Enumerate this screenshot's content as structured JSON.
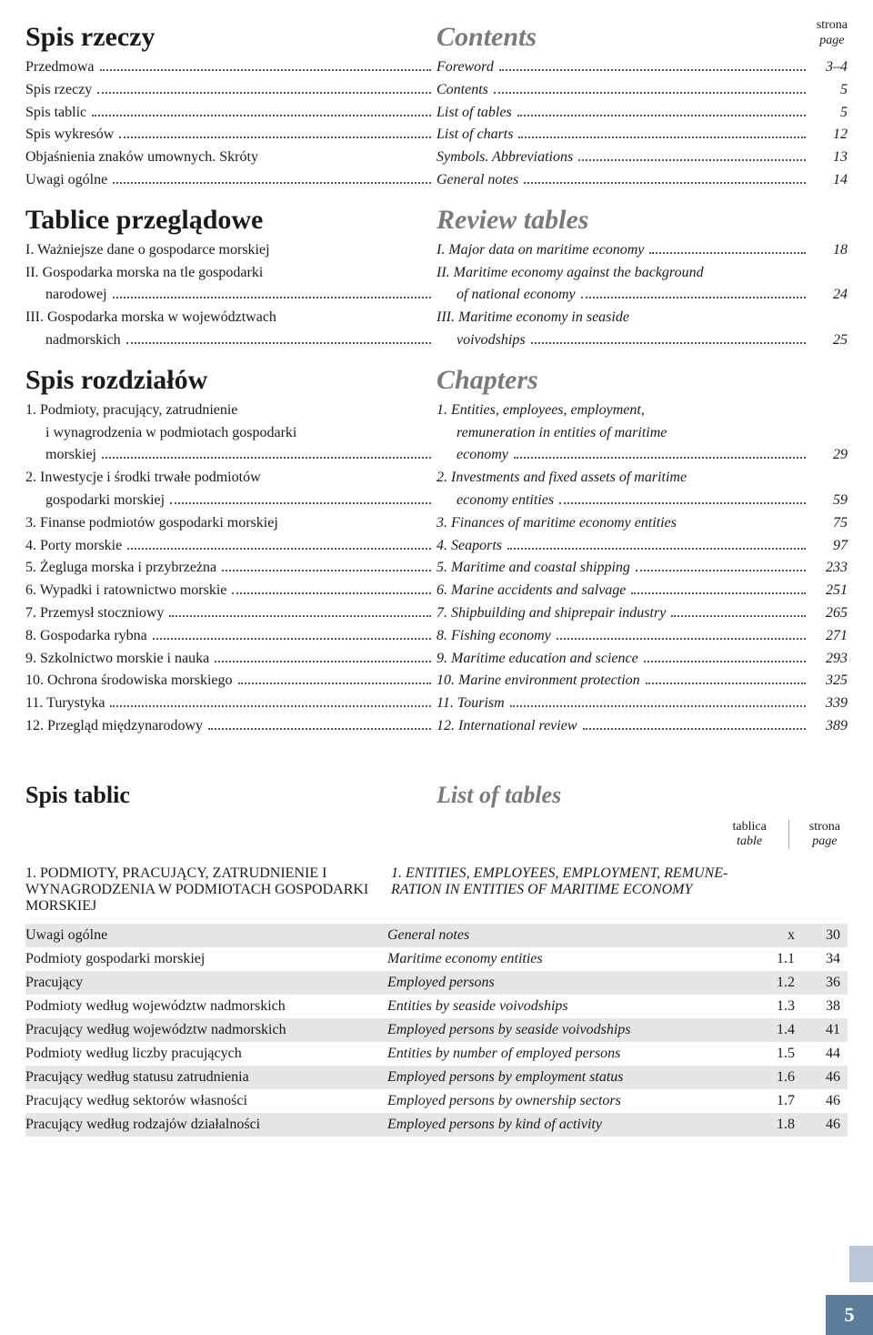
{
  "header": {
    "strona": "strona",
    "page": "page"
  },
  "section1": {
    "leftTitle": "Spis rzeczy",
    "rightTitle": "Contents",
    "rows": [
      {
        "pl": "Przedmowa",
        "en": "Foreword",
        "page": "3–4"
      },
      {
        "pl": "Spis rzeczy",
        "en": "Contents",
        "page": "5"
      },
      {
        "pl": "Spis tablic",
        "en": "List of tables",
        "page": "5"
      },
      {
        "pl": "Spis wykresów",
        "en": "List of charts",
        "page": "12"
      },
      {
        "pl": "Objaśnienia znaków umownych. Skróty",
        "en": "Symbols. Abbreviations",
        "page": "13",
        "noDotsLeft": true
      },
      {
        "pl": "Uwagi ogólne",
        "en": "General notes",
        "page": "14"
      }
    ]
  },
  "section2": {
    "leftTitle": "Tablice przeglądowe",
    "rightTitle": "Review tables",
    "rows": [
      {
        "pl": "I. Ważniejsze dane o gospodarce morskiej",
        "en": "I. Major data on maritime economy",
        "page": "18",
        "noDotsLeft": true
      },
      {
        "pl": "II. Gospodarka morska na tle gospodarki",
        "plCont": "narodowej",
        "en": "II. Maritime economy against the background",
        "enCont": "of national economy",
        "page": "24"
      },
      {
        "pl": "III. Gospodarka morska w województwach",
        "plCont": "nadmorskich",
        "en": "III. Maritime economy in seaside",
        "enCont": "voivodships",
        "page": "25"
      }
    ]
  },
  "section3": {
    "leftTitle": "Spis rozdziałów",
    "rightTitle": "Chapters",
    "rows": [
      {
        "pl": "1. Podmioty, pracujący, zatrudnienie",
        "plCont": "i wynagrodzenia w podmiotach gospodarki",
        "plCont2": "morskiej",
        "en": "1. Entities, employees, employment,",
        "enCont": "remuneration in entities of maritime",
        "enCont2": "economy",
        "page": "29"
      },
      {
        "pl": "2. Inwestycje i środki trwałe podmiotów",
        "plCont": "gospodarki morskiej",
        "en": "2. Investments and fixed assets of maritime",
        "enCont": "economy entities",
        "page": "59"
      },
      {
        "pl": "3. Finanse podmiotów gospodarki morskiej",
        "en": "3. Finances of maritime economy entities",
        "page": "75",
        "noDotsLeft": true,
        "noDots": true
      },
      {
        "pl": "4. Porty morskie",
        "en": "4. Seaports",
        "page": "97"
      },
      {
        "pl": "5. Żegluga morska i przybrzeżna",
        "en": "5. Maritime and coastal shipping",
        "page": "233"
      },
      {
        "pl": "6. Wypadki i ratownictwo morskie",
        "en": "6. Marine accidents and salvage",
        "page": "251"
      },
      {
        "pl": "7. Przemysł stoczniowy",
        "en": "7. Shipbuilding and shiprepair industry",
        "page": "265"
      },
      {
        "pl": "8. Gospodarka rybna",
        "en": "8. Fishing economy",
        "page": "271"
      },
      {
        "pl": "9. Szkolnictwo morskie i nauka",
        "en": "9. Maritime education and science",
        "page": "293"
      },
      {
        "pl": "10. Ochrona środowiska morskiego",
        "en": "10. Marine environment protection",
        "page": "325"
      },
      {
        "pl": "11. Turystyka",
        "en": "11. Tourism",
        "page": "339"
      },
      {
        "pl": "12. Przegląd międzynarodowy",
        "en": "12. International review",
        "page": "389"
      }
    ]
  },
  "listTables": {
    "leftTitle": "Spis tablic",
    "rightTitle": "List of tables",
    "col1": "tablica",
    "col1sub": "table",
    "col2": "strona",
    "col2sub": "page",
    "sectionHead": {
      "pl": "1. PODMIOTY, PRACUJĄCY, ZATRUDNIENIE I WYNAGRO­DZENIA W PODMIOTACH GOSPODARKI MORSKIEJ",
      "en": "1. ENTITIES, EMPLOYEES, EMPLOYMENT, REMUNE­RATION IN ENTITIES OF MARITIME ECONOMY"
    },
    "rows": [
      {
        "pl": "Uwagi ogólne",
        "en": "General notes",
        "t": "x",
        "p": "30",
        "shaded": true
      },
      {
        "pl": "Podmioty gospodarki morskiej",
        "en": "Maritime economy entities",
        "t": "1.1",
        "p": "34"
      },
      {
        "pl": "Pracujący",
        "en": "Employed persons",
        "t": "1.2",
        "p": "36",
        "shaded": true
      },
      {
        "pl": "Podmioty według województw nadmor­skich",
        "en": "Entities by seaside voivodships",
        "t": "1.3",
        "p": "38"
      },
      {
        "pl": "Pracujący według województw nadmor­skich",
        "en": "Employed persons by seaside voivodships",
        "t": "1.4",
        "p": "41",
        "shaded": true
      },
      {
        "pl": "Podmioty według liczby pracujących",
        "en": "Entities by number of employed persons",
        "t": "1.5",
        "p": "44"
      },
      {
        "pl": "Pracujący według statusu zatrudnienia",
        "en": "Employed persons by employment status",
        "t": "1.6",
        "p": "46",
        "shaded": true
      },
      {
        "pl": "Pracujący według sektorów własności",
        "en": "Employed persons by ownership sectors",
        "t": "1.7",
        "p": "46"
      },
      {
        "pl": "Pracujący według rodzajów działalności",
        "en": "Employed persons by kind of activity",
        "t": "1.8",
        "p": "46",
        "shaded": true
      }
    ]
  },
  "pageNumber": "5"
}
